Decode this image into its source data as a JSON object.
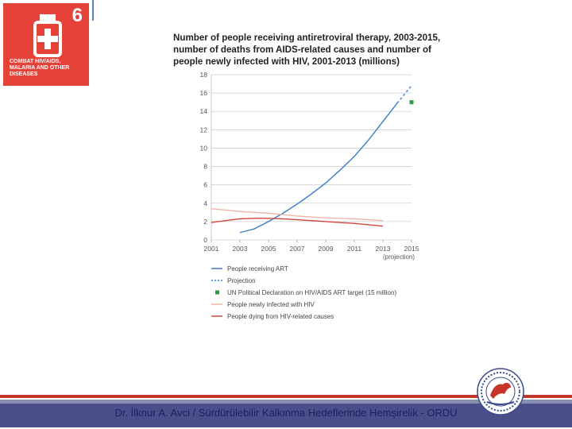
{
  "badge": {
    "number": "6",
    "label_lines": [
      "COMBAT HIV/AIDS,",
      "MALARIA AND OTHER",
      "DISEASES"
    ],
    "color": "#e5423a",
    "icon": "medicine-bottle-icon"
  },
  "chart_data": {
    "type": "line",
    "title_lines": [
      "Number of people receiving antiretroviral therapy, 2003-2015,",
      "number of deaths from AIDS-related causes and number of",
      "people newly infected with HIV, 2001-2013 (millions)"
    ],
    "ylim": [
      0,
      18
    ],
    "yticks": [
      "0",
      "2",
      "4",
      "6",
      "8",
      "10",
      "12",
      "14",
      "16",
      "18"
    ],
    "xlim": [
      2001,
      2015
    ],
    "xticks": [
      "2001",
      "2003",
      "2005",
      "2007",
      "2009",
      "2011",
      "2013",
      "2015"
    ],
    "xtick_note": "(projection)",
    "series": [
      {
        "name": "People receiving ART",
        "style": "solid",
        "color": "#3a7cc6",
        "x": [
          2003,
          2004,
          2005,
          2006,
          2007,
          2008,
          2009,
          2010,
          2011,
          2012,
          2013,
          2014
        ],
        "y": [
          0.8,
          1.2,
          2.0,
          2.9,
          3.9,
          5.0,
          6.2,
          7.6,
          9.1,
          10.9,
          12.9,
          14.9
        ]
      },
      {
        "name": "Projection",
        "style": "dashed",
        "color": "#3a7cc6",
        "x": [
          2014,
          2015
        ],
        "y": [
          14.9,
          16.8
        ]
      },
      {
        "name": "UN Political Declaration on HIV/AIDS ART target (15 million)",
        "style": "marker",
        "color": "#2e9a4a",
        "x": [
          2015
        ],
        "y": [
          15
        ]
      },
      {
        "name": "People newly infected with HIV",
        "style": "solid",
        "color": "#f2b4a8",
        "x": [
          2001,
          2003,
          2005,
          2007,
          2009,
          2011,
          2013
        ],
        "y": [
          3.4,
          3.1,
          2.9,
          2.6,
          2.4,
          2.3,
          2.1
        ]
      },
      {
        "name": "People dying from HIV-related causes",
        "style": "solid",
        "color": "#d0473c",
        "x": [
          2001,
          2002,
          2003,
          2004,
          2005,
          2006,
          2007,
          2008,
          2009,
          2010,
          2011,
          2012,
          2013
        ],
        "y": [
          1.9,
          2.1,
          2.3,
          2.35,
          2.35,
          2.3,
          2.2,
          2.1,
          2.0,
          1.9,
          1.8,
          1.65,
          1.5
        ]
      }
    ]
  },
  "footer": {
    "text": "Dr. İlknur A. Avci / Sürdürülebilir Kalkınma Hedeflerinde Hemşirelik - ORDU"
  },
  "logo": {
    "icon": "university-seal-icon",
    "color": "#c8332a"
  }
}
